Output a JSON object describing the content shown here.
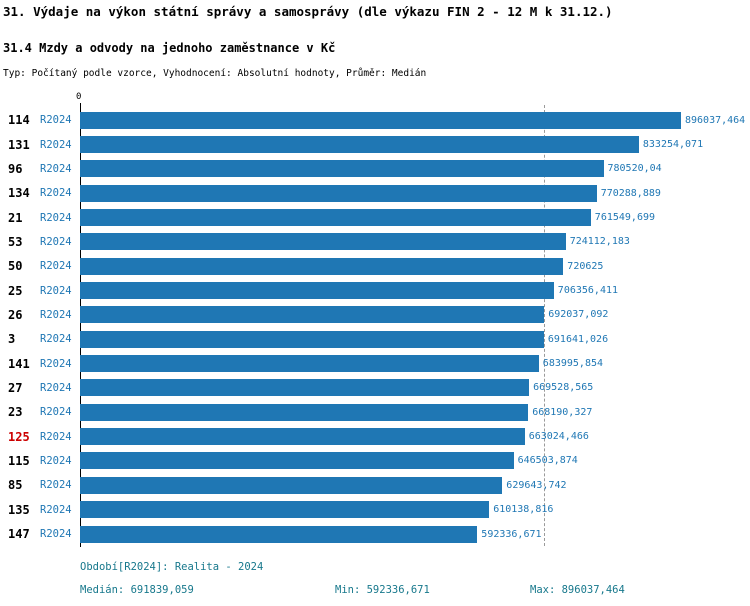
{
  "title": "31. Výdaje na výkon státní správy a samosprávy (dle výkazu FIN 2 - 12 M k 31.12.)",
  "subtitle": "31.4 Mzdy a odvody na jednoho zaměstnance v Kč",
  "meta": "Typ: Počítaný podle vzorce, Vyhodnocení: Absolutní hodnoty, Průměr: Medián",
  "colors": {
    "bar": "#1f77b4",
    "blue": "#1f77b4",
    "red": "#cc0000",
    "footer": "#17788c"
  },
  "chart_data": {
    "type": "bar",
    "orientation": "horizontal",
    "title": "31.4 Mzdy a odvody na jednoho zaměstnance v Kč",
    "series_label": "R2024",
    "categories": [
      "114",
      "131",
      "96",
      "134",
      "21",
      "53",
      "50",
      "25",
      "26",
      "3",
      "141",
      "27",
      "23",
      "125",
      "115",
      "85",
      "135",
      "147"
    ],
    "values": [
      896037.464,
      833254.071,
      780520.04,
      770288.889,
      761549.699,
      724112.183,
      720625,
      706356.411,
      692037.092,
      691641.026,
      683995.854,
      669528.565,
      668190.327,
      663024.466,
      646503.874,
      629643.742,
      610138.816,
      592336.671
    ],
    "value_labels": [
      "896037,464",
      "833254,071",
      "780520,04",
      "770288,889",
      "761549,699",
      "724112,183",
      "720625",
      "706356,411",
      "692037,092",
      "691641,026",
      "683995,854",
      "669528,565",
      "668190,327",
      "663024,466",
      "646503,874",
      "629643,742",
      "610138,816",
      "592336,671"
    ],
    "highlighted_category": "125",
    "median": 691839.059,
    "min": 592336.671,
    "max": 896037.464,
    "xlim": [
      0,
      896037.464
    ],
    "axis_tick": "0",
    "grid": "median-dashed-line",
    "legend_position": "none"
  },
  "footer": {
    "period": "Období[R2024]: Realita - 2024",
    "median": "Medián: 691839,059",
    "min": "Min: 592336,671",
    "max": "Max: 896037,464"
  }
}
